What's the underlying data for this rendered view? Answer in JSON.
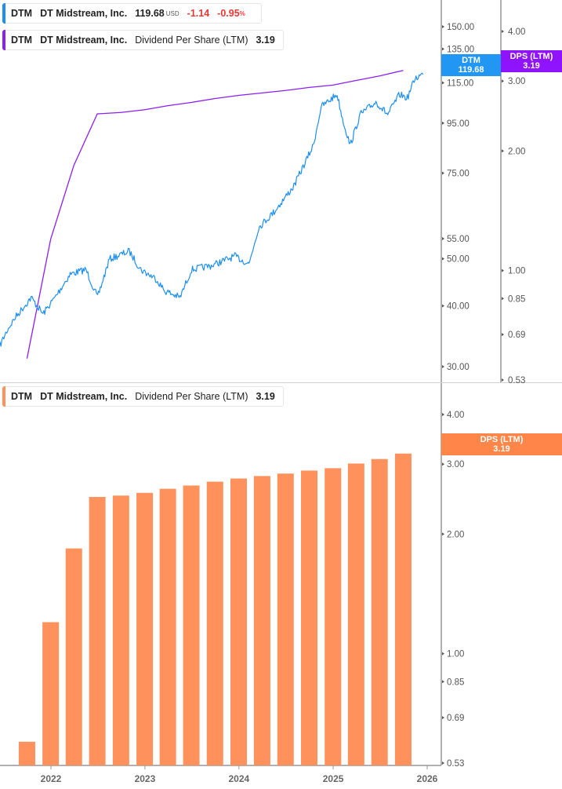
{
  "legend_price": {
    "ticker": "DTM",
    "name": "DT Midstream, Inc.",
    "price": "119.68",
    "currency": "USD",
    "change": "-1.14",
    "change_pct": "-0.95",
    "pct_sign": "%"
  },
  "legend_dps_top": {
    "ticker": "DTM",
    "name": "DT Midstream, Inc.",
    "metric": "Dividend Per Share (LTM)",
    "value": "3.19"
  },
  "legend_dps_bottom": {
    "ticker": "DTM",
    "name": "DT Midstream, Inc.",
    "metric": "Dividend Per Share (LTM)",
    "value": "3.19"
  },
  "badges": {
    "price": {
      "label": "DTM",
      "value": "119.68"
    },
    "dps_top": {
      "label": "DPS (LTM)",
      "value": "3.19"
    },
    "dps_bottom": {
      "label": "DPS (LTM)",
      "value": "3.19"
    }
  },
  "colors": {
    "price": "#1e8ff0",
    "dps_line": "#8a1ff0",
    "price_badge": "#2196f3",
    "dps_badge": "#9013fe",
    "bars": "#ff915c",
    "bar_badge": "#ff8548"
  },
  "chart_data": [
    {
      "type": "line",
      "pane": "top",
      "scale": "log",
      "ylim": [
        30,
        165
      ],
      "price_ticks": [
        "150.00",
        "135.00",
        "115.00",
        "95.00",
        "75.00",
        "55.00",
        "50.00",
        "40.00",
        "30.00"
      ],
      "dps_ticks": [
        "4.00",
        "3.00",
        "2.00",
        "1.00",
        "0.85",
        "0.69",
        "0.53"
      ],
      "dps_ylim": [
        0.53,
        4.6
      ],
      "series": [
        {
          "name": "DTM",
          "points": [
            [
              "2021-06-17",
              33.2
            ],
            [
              "2021-07-17",
              35.8
            ],
            [
              "2021-08-16",
              37.9
            ],
            [
              "2021-10-16",
              41.6
            ],
            [
              "2021-12-01",
              38.5
            ],
            [
              "2022-01-16",
              41.6
            ],
            [
              "2022-03-17",
              46.5
            ],
            [
              "2022-05-17",
              47.5
            ],
            [
              "2022-07-01",
              41.6
            ],
            [
              "2022-08-16",
              49.9
            ],
            [
              "2022-11-01",
              51.8
            ],
            [
              "2022-12-16",
              47.5
            ],
            [
              "2023-02-15",
              45.4
            ],
            [
              "2023-03-17",
              43.0
            ],
            [
              "2023-05-17",
              41.6
            ],
            [
              "2023-07-01",
              47.5
            ],
            [
              "2023-09-16",
              48.4
            ],
            [
              "2023-12-16",
              50.6
            ],
            [
              "2024-02-09",
              48.8
            ],
            [
              "2024-03-17",
              57.9
            ],
            [
              "2024-05-17",
              62.5
            ],
            [
              "2024-08-01",
              70.5
            ],
            [
              "2024-10-16",
              85.5
            ],
            [
              "2024-11-15",
              102.6
            ],
            [
              "2025-01-16",
              108.9
            ],
            [
              "2025-02-06",
              97.2
            ],
            [
              "2025-03-08",
              85.5
            ],
            [
              "2025-04-16",
              99.0
            ],
            [
              "2025-06-16",
              105.0
            ],
            [
              "2025-08-01",
              99.0
            ],
            [
              "2025-09-16",
              108.9
            ],
            [
              "2025-10-16",
              107.0
            ],
            [
              "2025-11-15",
              117.6
            ],
            [
              "2025-12-16",
              119.68
            ]
          ]
        },
        {
          "name": "Dividend Per Share (LTM)",
          "axis": "dps"
        }
      ]
    },
    {
      "type": "bar",
      "pane": "bottom",
      "scale": "log",
      "ylim": [
        0.53,
        4.6
      ],
      "y_ticks": [
        "4.00",
        "3.00",
        "2.00",
        "1.00",
        "0.85",
        "0.69",
        "0.53"
      ],
      "categories": [
        "2021-09-30",
        "2021-12-31",
        "2022-03-31",
        "2022-06-30",
        "2022-09-30",
        "2022-12-31",
        "2023-03-31",
        "2023-06-30",
        "2023-09-30",
        "2023-12-31",
        "2024-03-31",
        "2024-06-30",
        "2024-09-30",
        "2024-12-31",
        "2025-03-31",
        "2025-06-30",
        "2025-09-30"
      ],
      "values": [
        0.6,
        1.2,
        1.84,
        2.48,
        2.5,
        2.54,
        2.6,
        2.65,
        2.71,
        2.76,
        2.8,
        2.84,
        2.89,
        2.93,
        3.01,
        3.09,
        3.19
      ]
    }
  ],
  "x_axis": {
    "ticks": [
      "2022",
      "2023",
      "2024",
      "2025",
      "2026"
    ]
  }
}
